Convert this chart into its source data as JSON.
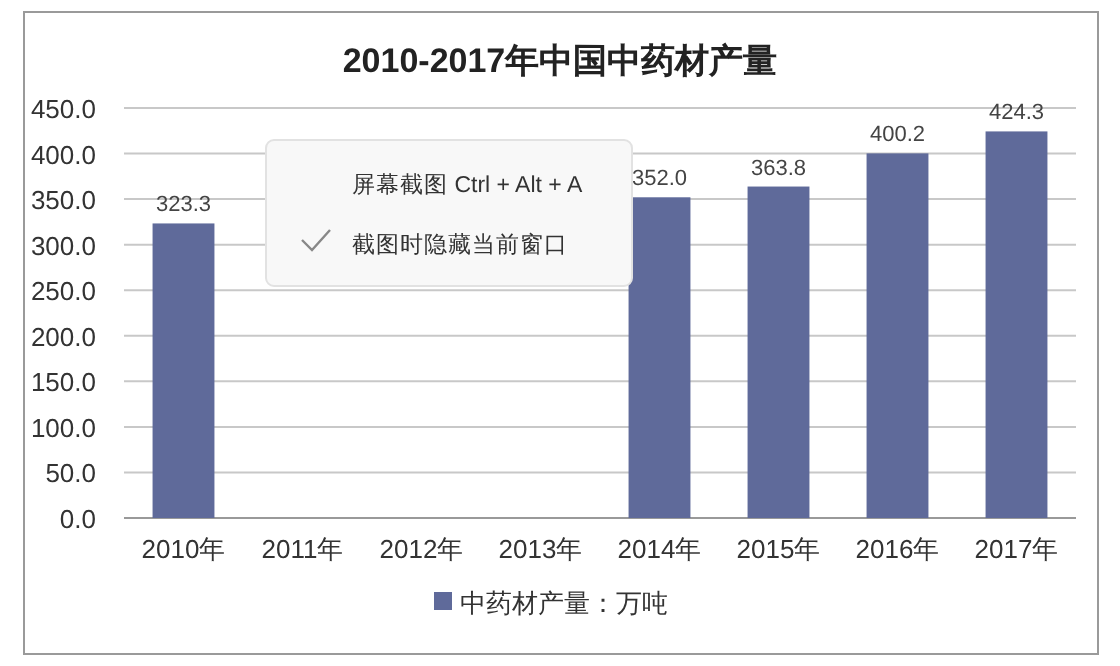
{
  "chart_data": {
    "type": "bar",
    "title": "2010-2017年中国中药材产量",
    "categories": [
      "2010年",
      "2011年",
      "2012年",
      "2013年",
      "2014年",
      "2015年",
      "2016年",
      "2017年"
    ],
    "series": [
      {
        "name": "中药材产量：万吨",
        "color": "#5f6a9a",
        "values": [
          323.3,
          null,
          null,
          null,
          352.0,
          363.8,
          400.2,
          424.3
        ],
        "value_labels": [
          "323.3",
          null,
          null,
          null,
          "352.0",
          "363.8",
          "400.2",
          "424.3"
        ]
      }
    ],
    "ylim": [
      0,
      450
    ],
    "yticks": [
      {
        "value": 0,
        "label": "0.0"
      },
      {
        "value": 50,
        "label": "50.0"
      },
      {
        "value": 100,
        "label": "100.0"
      },
      {
        "value": 150,
        "label": "150.0"
      },
      {
        "value": 200,
        "label": "200.0"
      },
      {
        "value": 250,
        "label": "250.0"
      },
      {
        "value": 300,
        "label": "300.0"
      },
      {
        "value": 350,
        "label": "350.0"
      },
      {
        "value": 400,
        "label": "400.0"
      },
      {
        "value": 450,
        "label": "450.0"
      }
    ],
    "grid": "y",
    "legend": "bottom",
    "annotations": [
      "屏幕截图 Ctrl + Alt + A",
      "截图时隐藏当前窗口"
    ]
  }
}
